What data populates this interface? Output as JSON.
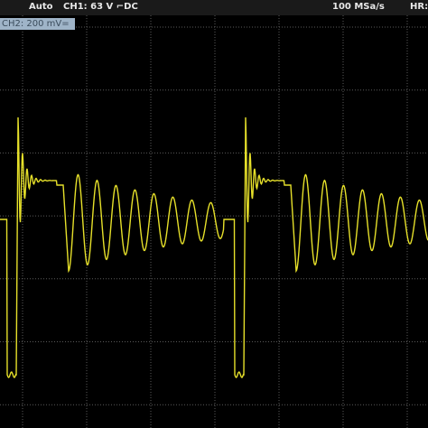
{
  "status_bar": {
    "mode": "Auto",
    "channel1": "CH1: 63 V ⌐DC",
    "sample_rate": "100 MSa/s",
    "resolution": "HR:"
  },
  "channel2_label": "CH2: 200 mV="
}
